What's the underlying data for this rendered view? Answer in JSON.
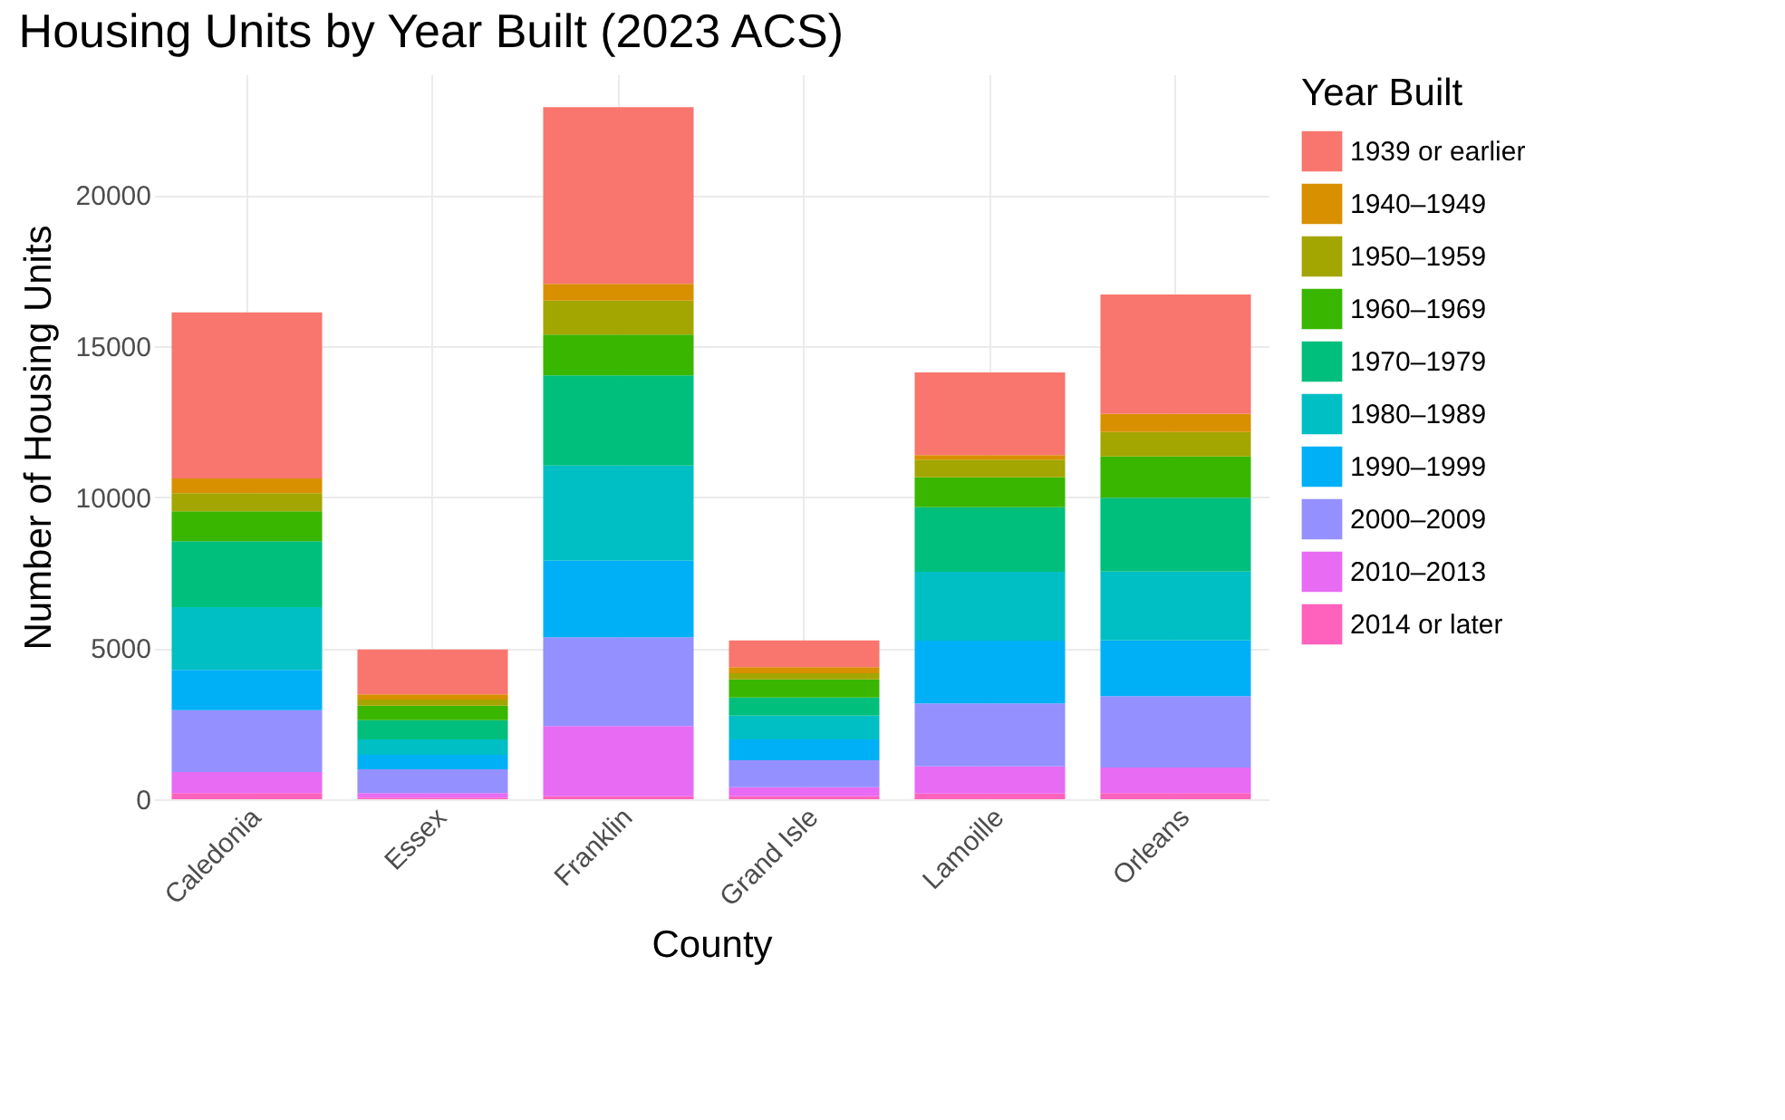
{
  "chart_data": {
    "type": "bar",
    "stacked": true,
    "title": "Housing Units by Year Built (2023 ACS)",
    "xlabel": "County",
    "ylabel": "Number of Housing Units",
    "legend_title": "Year Built",
    "legend": "right",
    "grid": true,
    "categories": [
      "Caledonia",
      "Essex",
      "Franklin",
      "Grand Isle",
      "Lamoille",
      "Orleans"
    ],
    "ylim": [
      0,
      24000
    ],
    "yticks": [
      0,
      5000,
      10000,
      15000,
      20000
    ],
    "series": [
      {
        "name": "2014 or later",
        "color": "#ff62bc",
        "values": [
          200,
          50,
          100,
          100,
          190,
          200
        ]
      },
      {
        "name": "2010–2013",
        "color": "#e76bf3",
        "values": [
          700,
          150,
          2320,
          300,
          900,
          850
        ]
      },
      {
        "name": "2000–2009",
        "color": "#9590ff",
        "values": [
          2050,
          790,
          2940,
          890,
          2080,
          2360
        ]
      },
      {
        "name": "1990–1999",
        "color": "#00b0f6",
        "values": [
          1330,
          480,
          2540,
          690,
          2080,
          1850
        ]
      },
      {
        "name": "1980–1989",
        "color": "#00bfc4",
        "values": [
          2080,
          510,
          3150,
          790,
          2280,
          2280
        ]
      },
      {
        "name": "1970–1979",
        "color": "#00bf7d",
        "values": [
          2180,
          640,
          2980,
          600,
          2140,
          2440
        ]
      },
      {
        "name": "1960–1969",
        "color": "#39b600",
        "values": [
          990,
          480,
          1350,
          600,
          990,
          1370
        ]
      },
      {
        "name": "1950–1959",
        "color": "#a3a500",
        "values": [
          600,
          200,
          1130,
          200,
          580,
          810
        ]
      },
      {
        "name": "1940–1949",
        "color": "#d89000",
        "values": [
          490,
          170,
          550,
          200,
          150,
          600
        ]
      },
      {
        "name": "1939 or earlier",
        "color": "#f8766d",
        "values": [
          5500,
          1490,
          5850,
          890,
          2740,
          3950
        ]
      }
    ]
  }
}
